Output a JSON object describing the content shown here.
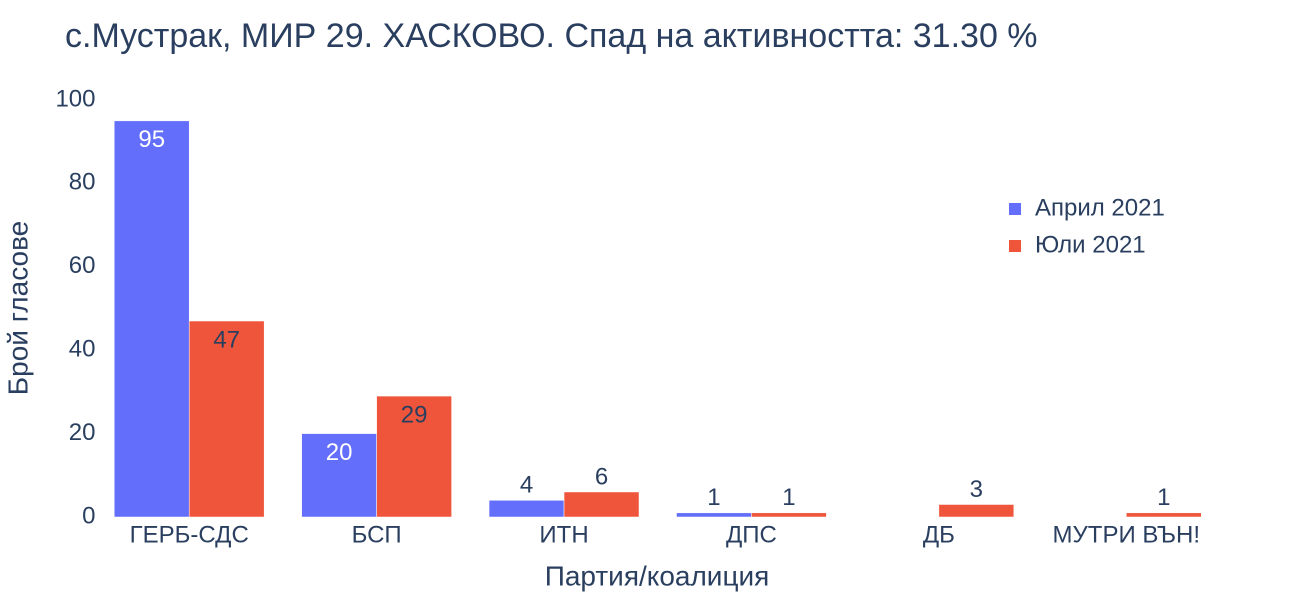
{
  "chart_data": {
    "type": "bar",
    "title": "с.Мустрак, МИР 29. ХАСКОВО. Спад на активността: 31.30 %",
    "x_label": "Партия/коалиция",
    "y_label": "Брой гласове",
    "categories": [
      "ГЕРБ-СДС",
      "БСП",
      "ИТН",
      "ДПС",
      "ДБ",
      "МУТРИ ВЪН!"
    ],
    "series": [
      {
        "name": "Април 2021",
        "color": "#636efa",
        "values": [
          95,
          20,
          4,
          1,
          null,
          null
        ]
      },
      {
        "name": "Юли 2021",
        "color": "#ef553b",
        "values": [
          47,
          29,
          6,
          1,
          3,
          1
        ]
      }
    ],
    "ylim": [
      0,
      100
    ],
    "yticks": [
      0,
      20,
      40,
      60,
      80,
      100
    ],
    "grid": false,
    "legend": "upper right"
  }
}
